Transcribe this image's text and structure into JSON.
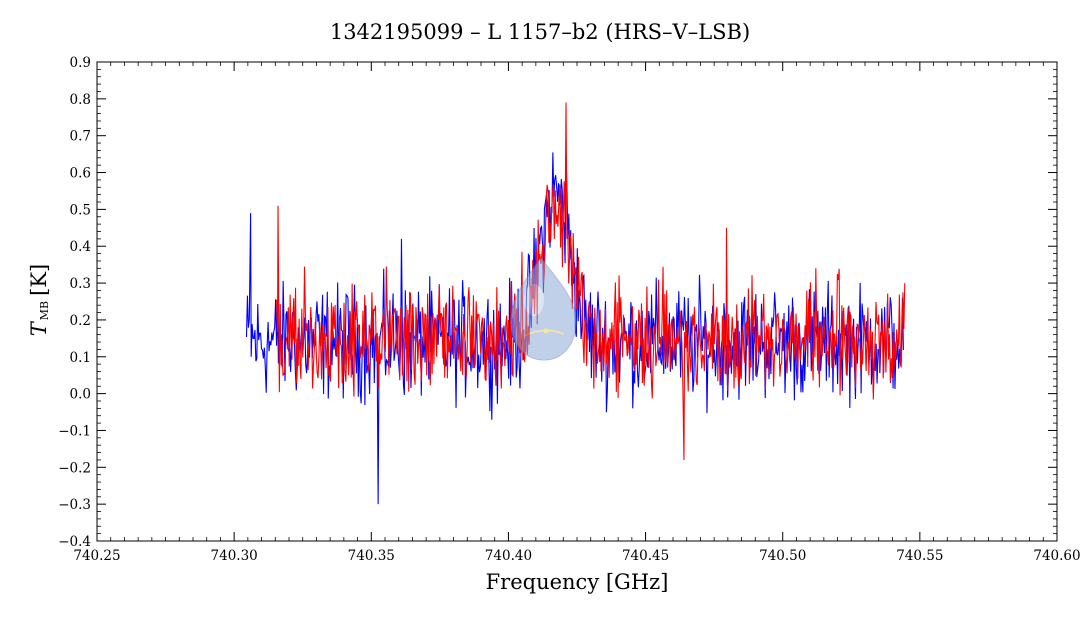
{
  "chart_data": {
    "type": "line",
    "title": "1342195099 – L 1157–b2 (HRS–V–LSB)",
    "xlabel": "Frequency [GHz]",
    "ylabel": {
      "symbol": "T",
      "subscript": "MB",
      "unit": "[K]"
    },
    "xlim": [
      740.25,
      740.6
    ],
    "ylim": [
      -0.4,
      0.9
    ],
    "xticks": [
      740.25,
      740.3,
      740.35,
      740.4,
      740.45,
      740.5,
      740.55,
      740.6
    ],
    "xtick_labels": [
      "740.25",
      "740.30",
      "740.35",
      "740.40",
      "740.45",
      "740.50",
      "740.55",
      "740.60"
    ],
    "yticks": [
      -0.4,
      -0.3,
      -0.2,
      -0.1,
      0.0,
      0.1,
      0.2,
      0.3,
      0.4,
      0.5,
      0.6,
      0.7,
      0.8,
      0.9
    ],
    "ytick_labels": [
      "−0.4",
      "−0.3",
      "−0.2",
      "−0.1",
      "0.0",
      "0.1",
      "0.2",
      "0.3",
      "0.4",
      "0.5",
      "0.6",
      "0.7",
      "0.8",
      "0.9"
    ],
    "grid": false,
    "line_center_ghz": 740.417,
    "series": [
      {
        "color": "#0000ff",
        "x_start": 740.3045,
        "x_end": 740.544,
        "baseline_k": 0.14,
        "noise_amplitude_k": 0.11,
        "line_peak_k": 0.62,
        "notable_points": [
          [
            740.306,
            0.49
          ],
          [
            740.3525,
            -0.3
          ],
          [
            740.361,
            0.42
          ],
          [
            740.421,
            0.65
          ]
        ]
      },
      {
        "color": "#ff0000",
        "x_start": 740.3155,
        "x_end": 740.5445,
        "baseline_k": 0.15,
        "noise_amplitude_k": 0.11,
        "line_peak_k": 0.6,
        "notable_points": [
          [
            740.316,
            0.51
          ],
          [
            740.421,
            0.79
          ],
          [
            740.464,
            -0.18
          ],
          [
            740.4795,
            0.45
          ]
        ]
      }
    ]
  }
}
